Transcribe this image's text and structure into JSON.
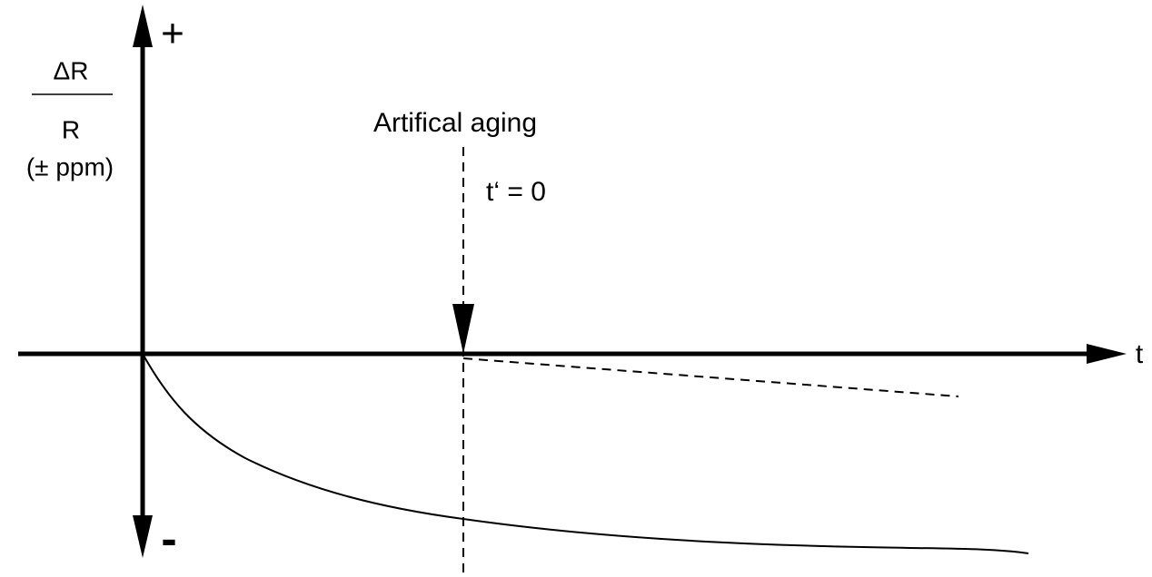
{
  "axes": {
    "y_positive": "+",
    "y_negative": "-",
    "x_label": "t"
  },
  "y_label": {
    "numerator": "ΔR",
    "denominator": "R",
    "unit": "(± ppm)"
  },
  "annotation": {
    "event": "Artifical aging",
    "reset": "t‘ = 0"
  }
}
